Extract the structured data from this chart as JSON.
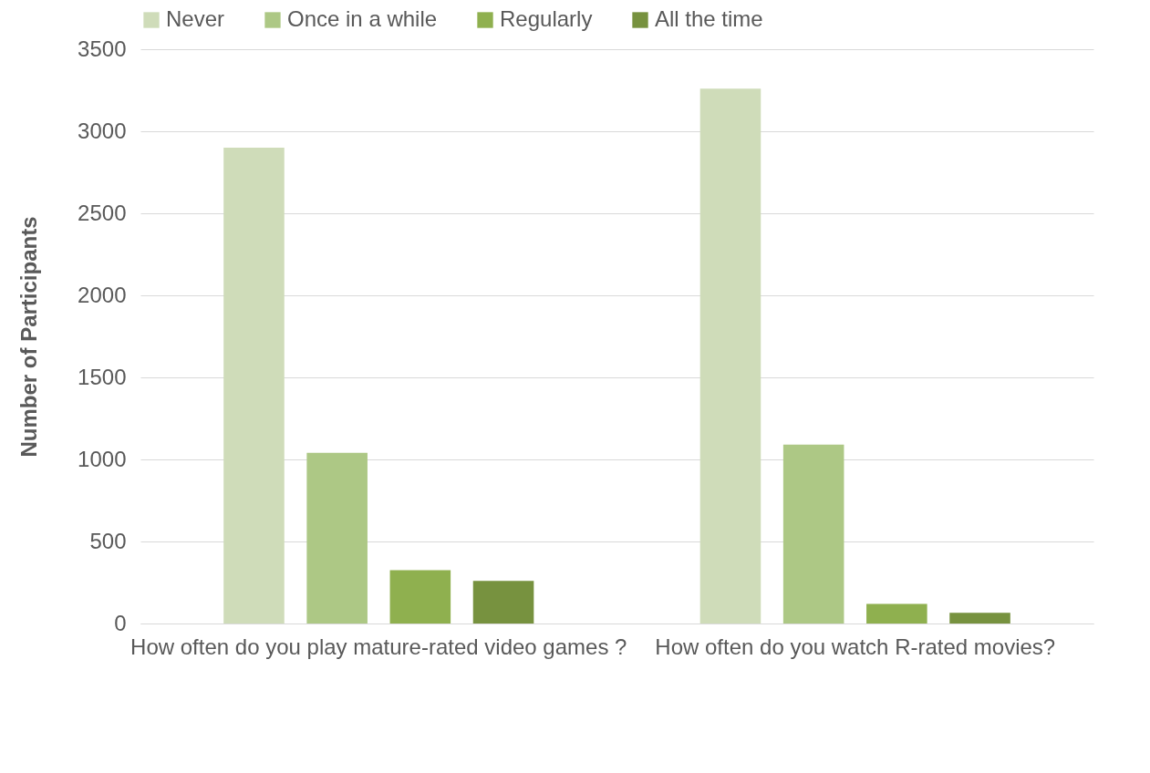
{
  "chart_data": {
    "type": "bar",
    "ylabel": "Number of Participants",
    "categories": [
      "How often do you play mature-rated video games ?",
      "How often do you watch R-rated movies?"
    ],
    "series": [
      {
        "name": "Never",
        "color": "#cfdcb9",
        "values": [
          2900,
          3260
        ]
      },
      {
        "name": "Once in a while",
        "color": "#adc885",
        "values": [
          1040,
          1090
        ]
      },
      {
        "name": "Regularly",
        "color": "#8fb04f",
        "values": [
          325,
          120
        ]
      },
      {
        "name": "All the time",
        "color": "#77923f",
        "values": [
          260,
          65
        ]
      }
    ],
    "ylim": [
      0,
      3500
    ],
    "yticks": [
      0,
      500,
      1000,
      1500,
      2000,
      2500,
      3000,
      3500
    ],
    "grid": "y",
    "legend": "top"
  }
}
